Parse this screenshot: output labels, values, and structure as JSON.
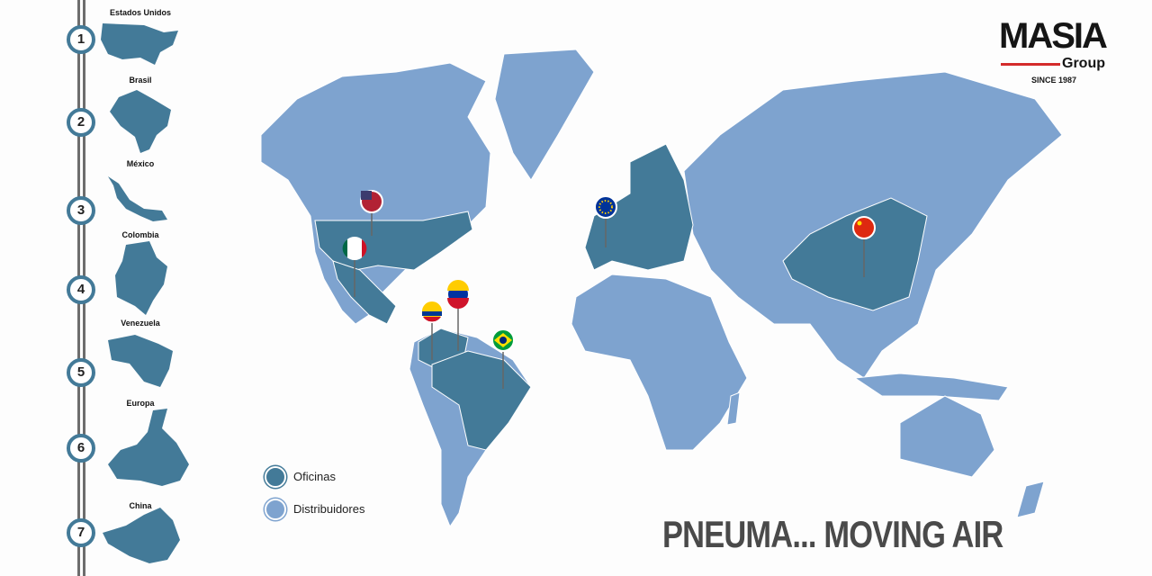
{
  "locations": [
    {
      "number": "1",
      "name": "Estados Unidos"
    },
    {
      "number": "2",
      "name": "Brasil"
    },
    {
      "number": "3",
      "name": "México"
    },
    {
      "number": "4",
      "name": "Colombia"
    },
    {
      "number": "5",
      "name": "Venezuela"
    },
    {
      "number": "6",
      "name": "Europa"
    },
    {
      "number": "7",
      "name": "China"
    }
  ],
  "legend": {
    "offices": "Oficinas",
    "distributors": "Distribuidores"
  },
  "slogan": "PNEUMA... MOVING AIR",
  "logo": {
    "name": "MASIA",
    "group": "Group",
    "since": "SINCE 1987"
  },
  "colors": {
    "offices": "#437a98",
    "distributors": "#7ea3cf",
    "accent": "#d42b2b"
  },
  "pins": [
    "us-flag",
    "mexico-flag",
    "venezuela-flag",
    "colombia-flag",
    "brazil-flag",
    "eu-flag",
    "china-flag"
  ]
}
